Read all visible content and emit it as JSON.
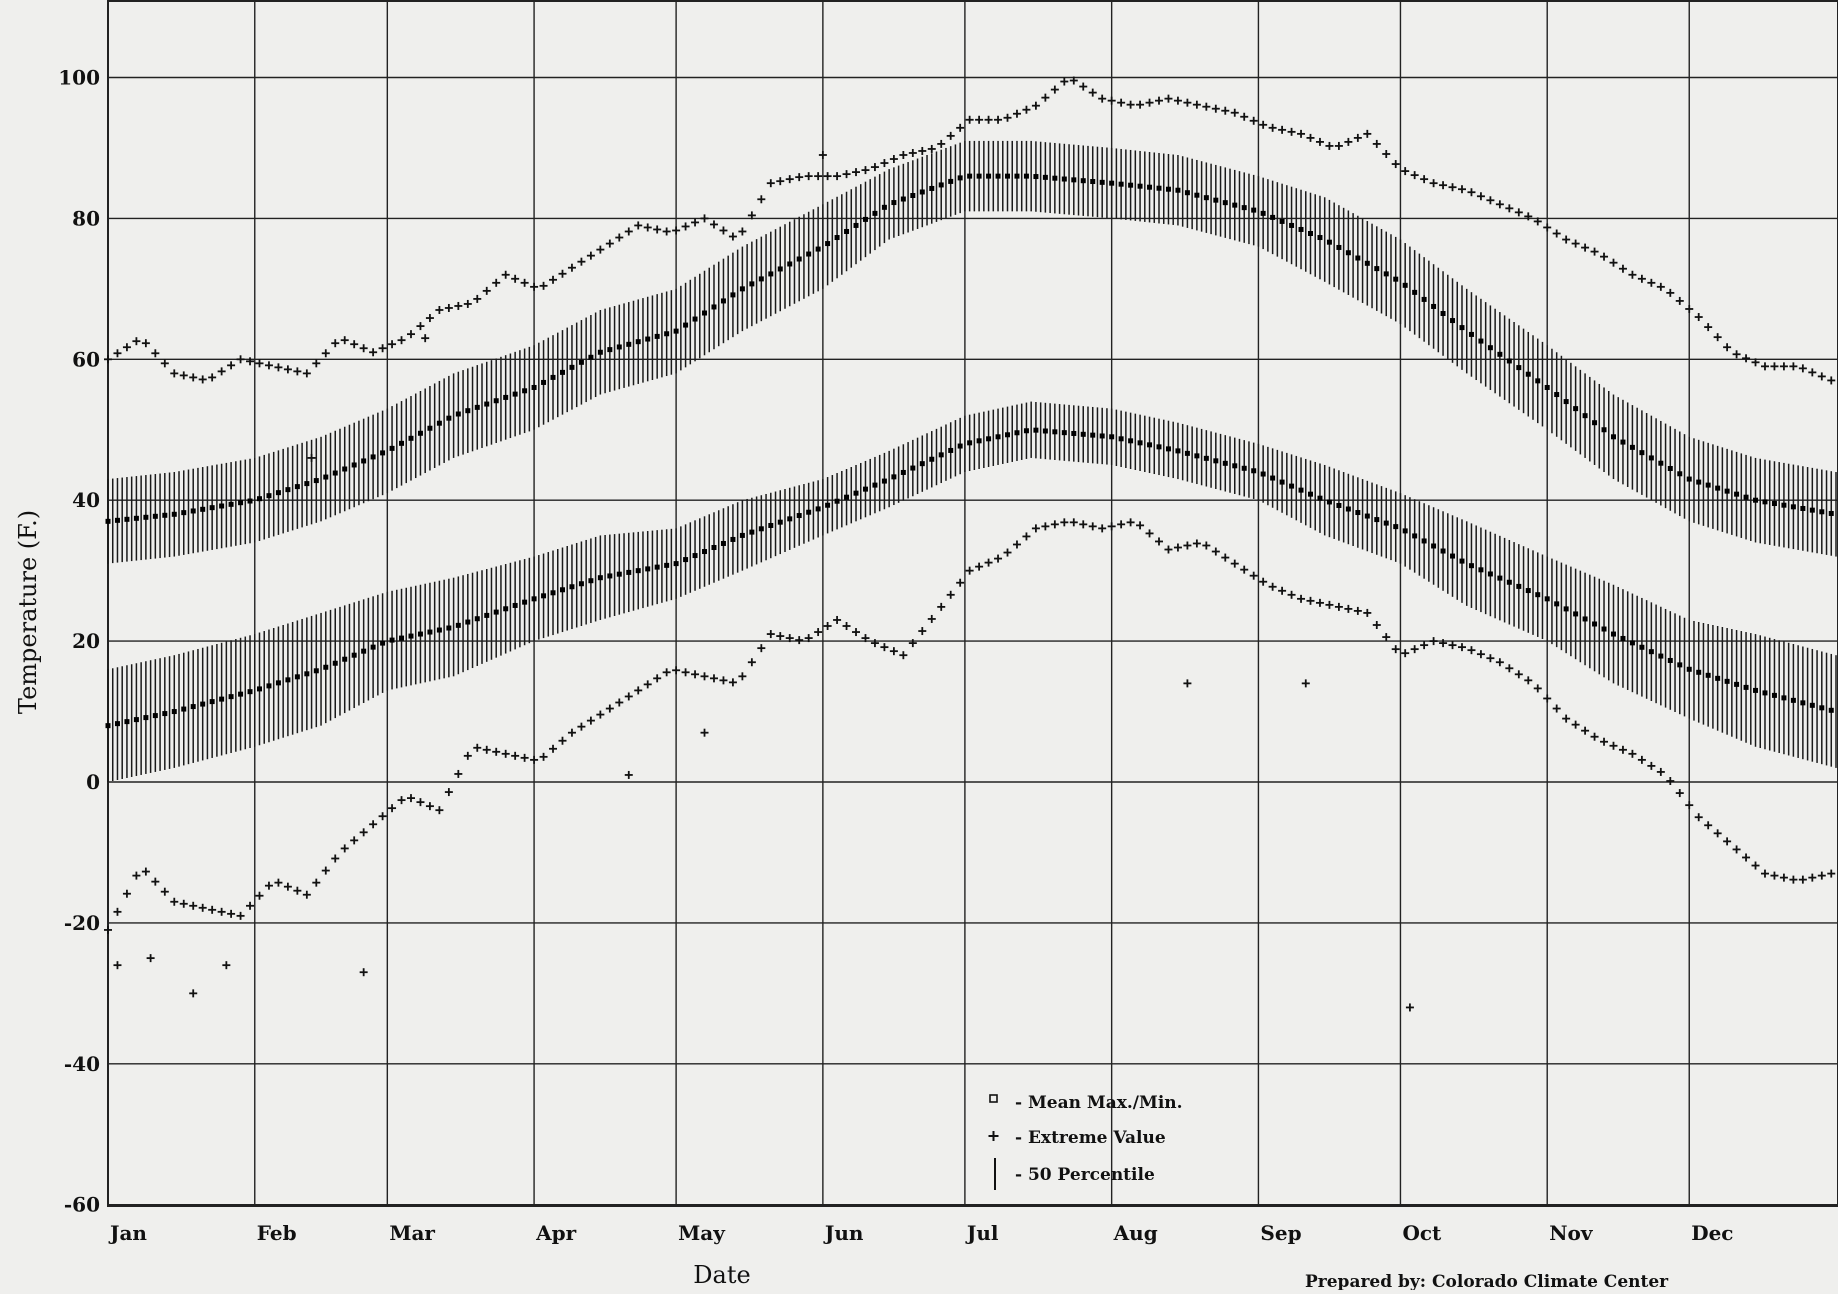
{
  "chart_data": {
    "type": "scatter",
    "title": "",
    "xlabel": "Date",
    "ylabel": "Temperature (F.)",
    "x_axis_type": "day-of-year",
    "xlim": [
      1,
      366
    ],
    "ylim": [
      -60,
      110
    ],
    "y_ticks": [
      100,
      80,
      60,
      40,
      20,
      0,
      -20,
      -40,
      -60
    ],
    "y_tick_labels": [
      "100",
      "80",
      "60",
      "40",
      "20",
      "0",
      "-20",
      "-40",
      "-60"
    ],
    "month_labels": [
      "Jan",
      "Feb",
      "Mar",
      "Apr",
      "May",
      "Jun",
      "Jul",
      "Aug",
      "Sep",
      "Oct",
      "Nov",
      "Dec"
    ],
    "month_start_days": [
      1,
      32,
      60,
      91,
      121,
      152,
      182,
      213,
      244,
      274,
      305,
      335
    ],
    "grid": true,
    "legend_position": "bottom-center",
    "legend": [
      {
        "symbol": "square",
        "label": "- Mean Max./Min."
      },
      {
        "symbol": "plus",
        "label": "- Extreme Value"
      },
      {
        "symbol": "bar",
        "label": "- 50 Percentile"
      }
    ],
    "series": [
      {
        "name": "Mean Max.",
        "role": "mean-max",
        "x": [
          1,
          15,
          32,
          46,
          60,
          74,
          91,
          105,
          121,
          135,
          152,
          166,
          182,
          196,
          213,
          227,
          244,
          258,
          274,
          288,
          305,
          319,
          335,
          349,
          366
        ],
        "y": [
          37,
          38,
          40,
          43,
          47,
          52,
          56,
          61,
          64,
          70,
          76,
          82,
          86,
          86,
          85,
          84,
          81,
          77,
          71,
          64,
          56,
          49,
          43,
          40,
          38
        ],
        "band_half_width": [
          6,
          6,
          6,
          6,
          6,
          6,
          6,
          6,
          6,
          6,
          6,
          5,
          5,
          5,
          5,
          5,
          5,
          6,
          6,
          6,
          6,
          6,
          6,
          6,
          6
        ]
      },
      {
        "name": "Mean Min.",
        "role": "mean-min",
        "x": [
          1,
          15,
          32,
          46,
          60,
          74,
          91,
          105,
          121,
          135,
          152,
          166,
          182,
          196,
          213,
          227,
          244,
          258,
          274,
          288,
          305,
          319,
          335,
          349,
          366
        ],
        "y": [
          8,
          10,
          13,
          16,
          20,
          22,
          26,
          29,
          31,
          35,
          39,
          43,
          48,
          50,
          49,
          47,
          44,
          40,
          36,
          31,
          26,
          21,
          16,
          13,
          10
        ],
        "band_half_width": [
          8,
          8,
          8,
          8,
          7,
          7,
          6,
          6,
          5,
          5,
          4,
          4,
          4,
          4,
          4,
          4,
          4,
          5,
          5,
          6,
          6,
          7,
          7,
          8,
          8
        ]
      },
      {
        "name": "Extreme Max.",
        "role": "extreme-high",
        "x": [
          1,
          8,
          15,
          22,
          29,
          36,
          43,
          50,
          57,
          64,
          71,
          78,
          85,
          92,
          99,
          106,
          113,
          120,
          127,
          134,
          141,
          148,
          155,
          162,
          169,
          176,
          183,
          190,
          197,
          204,
          211,
          218,
          225,
          232,
          239,
          246,
          253,
          260,
          267,
          274,
          281,
          288,
          295,
          302,
          309,
          316,
          323,
          330,
          337,
          344,
          351,
          358,
          365
        ],
        "y": [
          60,
          63,
          58,
          57,
          60,
          59,
          58,
          63,
          61,
          63,
          67,
          68,
          72,
          70,
          73,
          76,
          79,
          78,
          80,
          77,
          85,
          86,
          86,
          87,
          89,
          90,
          94,
          94,
          96,
          100,
          97,
          96,
          97,
          96,
          95,
          93,
          92,
          90,
          92,
          87,
          85,
          84,
          82,
          80,
          77,
          75,
          72,
          70,
          66,
          61,
          59,
          59,
          57
        ]
      },
      {
        "name": "Extreme Min.",
        "role": "extreme-low",
        "x": [
          1,
          8,
          15,
          22,
          29,
          36,
          43,
          50,
          57,
          64,
          71,
          78,
          85,
          92,
          99,
          106,
          113,
          120,
          127,
          134,
          141,
          148,
          155,
          162,
          169,
          176,
          183,
          190,
          197,
          204,
          211,
          218,
          225,
          232,
          239,
          246,
          253,
          260,
          267,
          274,
          281,
          288,
          295,
          302,
          309,
          316,
          323,
          330,
          337,
          344,
          351,
          358,
          365
        ],
        "y": [
          -21,
          -12,
          -17,
          -18,
          -19,
          -14,
          -16,
          -10,
          -6,
          -2,
          -4,
          5,
          4,
          3,
          7,
          10,
          13,
          16,
          15,
          14,
          21,
          20,
          23,
          20,
          18,
          24,
          30,
          32,
          36,
          37,
          36,
          37,
          33,
          34,
          31,
          28,
          26,
          25,
          24,
          18,
          20,
          19,
          17,
          14,
          9,
          6,
          4,
          1,
          -5,
          -9,
          -13,
          -14,
          -13
        ]
      }
    ],
    "scattered_extremes": [
      {
        "x": 3,
        "y": -26
      },
      {
        "x": 10,
        "y": -25
      },
      {
        "x": 19,
        "y": -30
      },
      {
        "x": 26,
        "y": -26
      },
      {
        "x": 44,
        "y": 46
      },
      {
        "x": 55,
        "y": -27
      },
      {
        "x": 68,
        "y": 63
      },
      {
        "x": 111,
        "y": 1
      },
      {
        "x": 127,
        "y": 7
      },
      {
        "x": 152,
        "y": 89
      },
      {
        "x": 229,
        "y": 14
      },
      {
        "x": 254,
        "y": 14
      },
      {
        "x": 276,
        "y": -32
      }
    ],
    "credit": "Prepared by: Colorado Climate Center"
  }
}
